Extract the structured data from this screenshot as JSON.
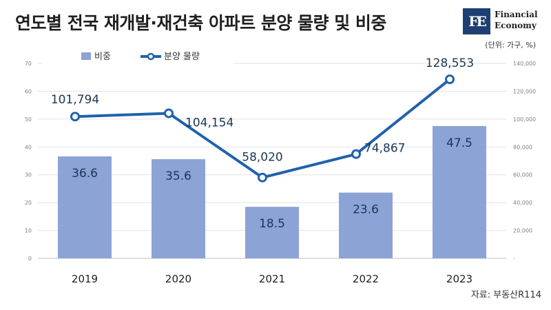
{
  "header": {
    "title": "연도별 전국 재개발·재건축 아파트 분양 물량 및 비중",
    "logo_mark": "FE",
    "logo_line1": "Financial",
    "logo_line2": "Economy",
    "unit_note": "(단위: 가구, %)"
  },
  "footer": {
    "source": "자료: 부동산R114"
  },
  "colors": {
    "bar": "#8ca3d6",
    "line": "#1f62ad",
    "marker_fill": "#ffffff",
    "data_label": "#1a3654"
  },
  "chart_data": {
    "type": "bar",
    "categories": [
      "2019",
      "2020",
      "2021",
      "2022",
      "2023"
    ],
    "series": [
      {
        "name": "비중",
        "type": "bar",
        "axis": "left",
        "values": [
          36.6,
          35.6,
          18.5,
          23.6,
          47.5
        ],
        "labels": [
          "36.6",
          "35.6",
          "18.5",
          "23.6",
          "47.5"
        ]
      },
      {
        "name": "분양 물량",
        "type": "line",
        "axis": "right",
        "values": [
          101794,
          104154,
          58020,
          74867,
          128553
        ],
        "labels": [
          "101,794",
          "104,154",
          "58,020",
          "74,867",
          "128,553"
        ]
      }
    ],
    "y_left": {
      "lim": [
        0,
        70
      ],
      "ticks": [
        "0",
        "10",
        "20",
        "30",
        "40",
        "50",
        "60",
        "70"
      ]
    },
    "y_right": {
      "lim": [
        0,
        140000
      ],
      "ticks": [
        "-",
        "20,000",
        "40,000",
        "60,000",
        "80,000",
        "100,000",
        "120,000",
        "140,000"
      ]
    },
    "grid": true,
    "legend": "top-left"
  }
}
